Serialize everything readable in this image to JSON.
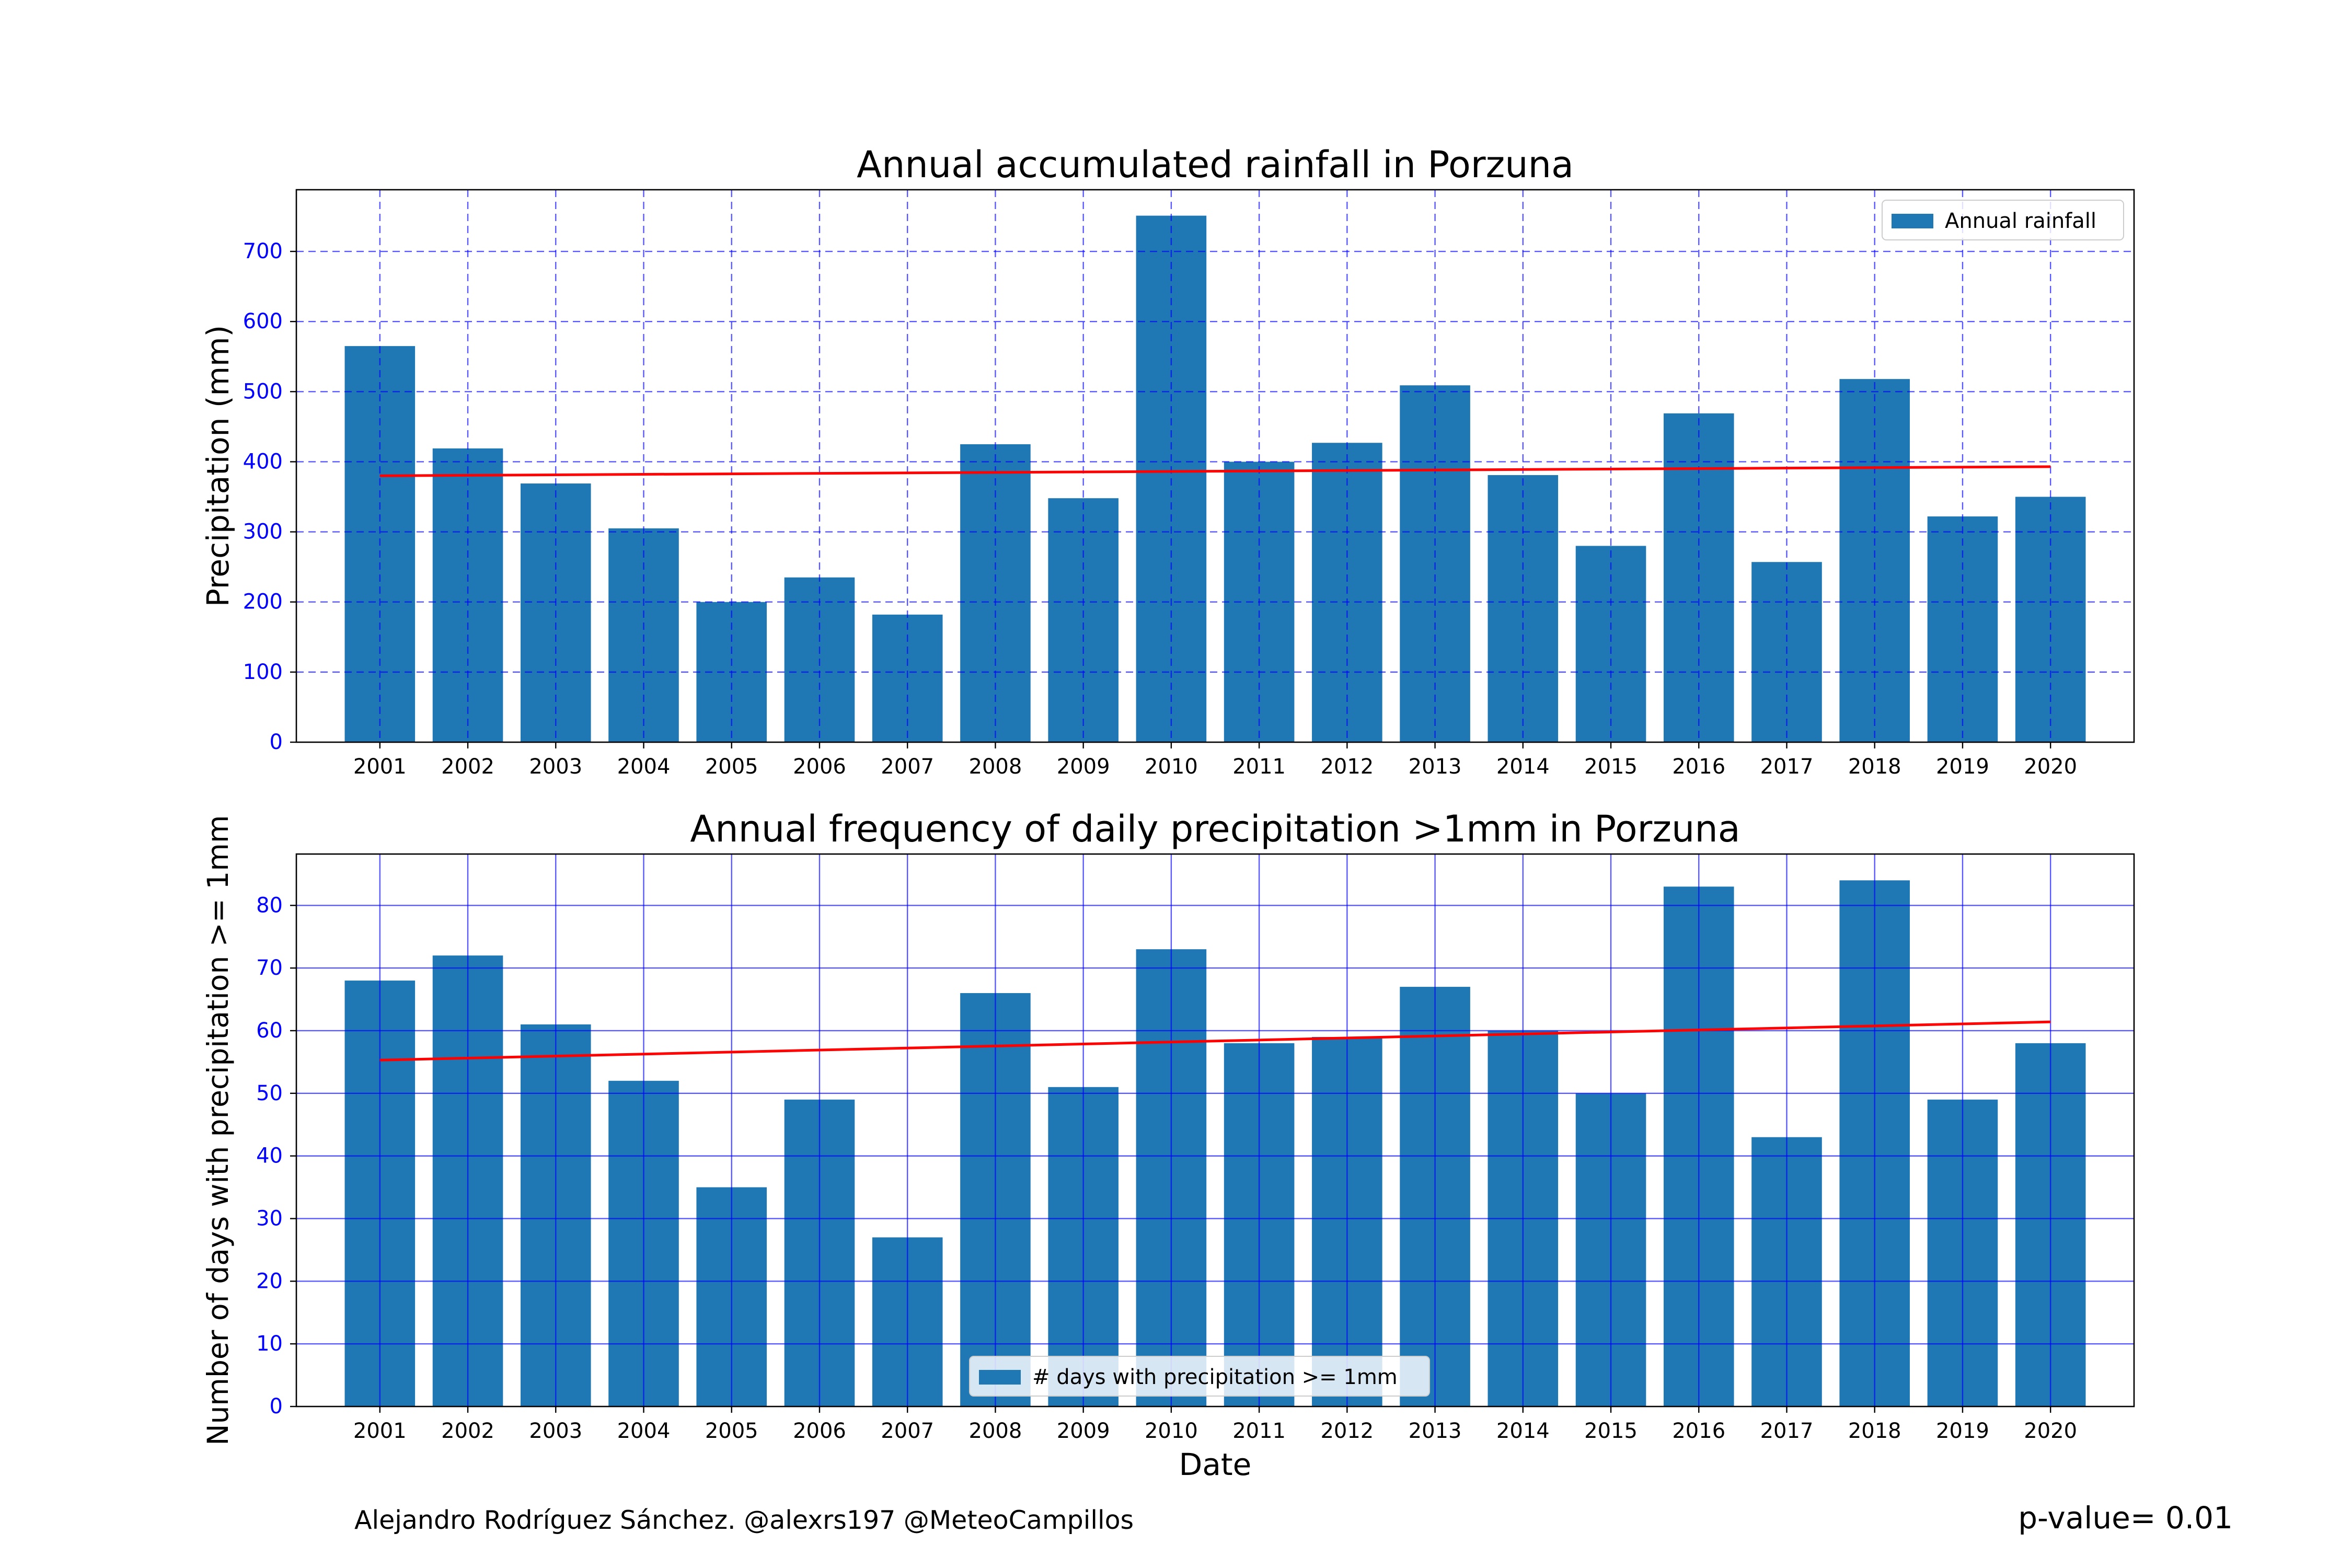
{
  "footer": {
    "credit": "Alejandro Rodríguez Sánchez. @alexrs197 @MeteoCampillos",
    "pvalue": "p-value= 0.01"
  },
  "colors": {
    "bar": "#1f77b4",
    "trend": "#ff0000",
    "grid": "#0000ff",
    "tick_label": "#0000ff"
  },
  "chart_data": [
    {
      "type": "bar",
      "title": "Annual accumulated rainfall in Porzuna",
      "xlabel": "",
      "ylabel": "Precipitation (mm)",
      "categories": [
        "2001",
        "2002",
        "2003",
        "2004",
        "2005",
        "2006",
        "2007",
        "2008",
        "2009",
        "2010",
        "2011",
        "2012",
        "2013",
        "2014",
        "2015",
        "2016",
        "2017",
        "2018",
        "2019",
        "2020"
      ],
      "series": [
        {
          "name": "Annual rainfall",
          "values": [
            565,
            419,
            369,
            305,
            200,
            235,
            182,
            425,
            348,
            751,
            400,
            427,
            509,
            381,
            280,
            469,
            257,
            518,
            322,
            350
          ]
        }
      ],
      "trend": {
        "start": 380,
        "end": 393,
        "color": "#ff0000"
      },
      "yticks": [
        0,
        100,
        200,
        300,
        400,
        500,
        600,
        700
      ],
      "ylim": [
        0,
        788
      ],
      "grid": "dashed",
      "legend": "top-right"
    },
    {
      "type": "bar",
      "title": "Annual frequency of daily precipitation >1mm in Porzuna",
      "xlabel": "Date",
      "ylabel": "Number of days with precipitation >= 1mm",
      "categories": [
        "2001",
        "2002",
        "2003",
        "2004",
        "2005",
        "2006",
        "2007",
        "2008",
        "2009",
        "2010",
        "2011",
        "2012",
        "2013",
        "2014",
        "2015",
        "2016",
        "2017",
        "2018",
        "2019",
        "2020"
      ],
      "series": [
        {
          "name": "# days with precipitation >= 1mm",
          "values": [
            68,
            72,
            61,
            52,
            35,
            49,
            27,
            66,
            51,
            73,
            58,
            59,
            67,
            60,
            50,
            83,
            43,
            84,
            49,
            58
          ]
        }
      ],
      "trend": {
        "start": 55.3,
        "end": 61.4,
        "color": "#ff0000"
      },
      "yticks": [
        0,
        10,
        20,
        30,
        40,
        50,
        60,
        70,
        80
      ],
      "ylim": [
        0,
        88.2
      ],
      "grid": "solid",
      "legend": "bottom-center"
    }
  ]
}
